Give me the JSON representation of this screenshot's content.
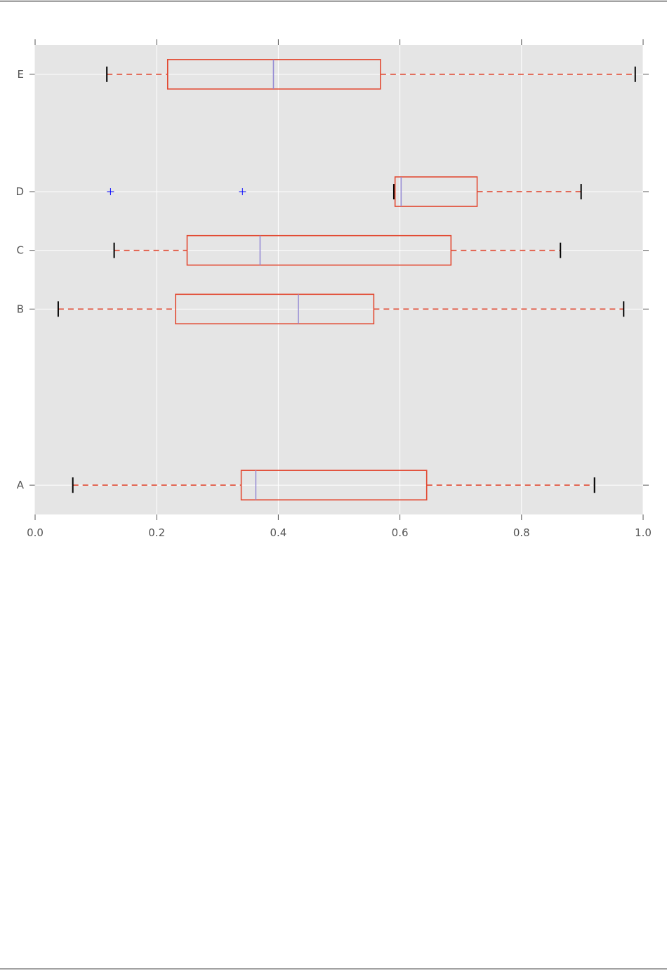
{
  "chart_data": {
    "type": "boxplot",
    "orientation": "horizontal",
    "title": "",
    "xlabel": "",
    "ylabel": "",
    "xlim": [
      0.0,
      1.0
    ],
    "x_ticks": [
      "0.0",
      "0.2",
      "0.4",
      "0.6",
      "0.8",
      "1.0"
    ],
    "grid": true,
    "colors": {
      "background": "#e5e5e5",
      "box": "#e24a33",
      "median": "#988ed5",
      "flier": "#0000ff",
      "cap": "#000000",
      "grid": "#ffffff"
    },
    "boxes": [
      {
        "label": "A",
        "position": 1.0,
        "whisker_low": 0.062,
        "q1": 0.339,
        "median": 0.363,
        "q3": 0.644,
        "whisker_high": 0.92,
        "fliers": []
      },
      {
        "label": "B",
        "position": 4.0,
        "whisker_low": 0.038,
        "q1": 0.231,
        "median": 0.433,
        "q3": 0.557,
        "whisker_high": 0.968,
        "fliers": []
      },
      {
        "label": "C",
        "position": 5.0,
        "whisker_low": 0.13,
        "q1": 0.25,
        "median": 0.37,
        "q3": 0.684,
        "whisker_high": 0.864,
        "fliers": []
      },
      {
        "label": "D",
        "position": 6.0,
        "whisker_low": 0.59,
        "q1": 0.592,
        "median": 0.602,
        "q3": 0.727,
        "whisker_high": 0.898,
        "fliers": [
          0.124,
          0.341
        ]
      },
      {
        "label": "E",
        "position": 8.0,
        "whisker_low": 0.118,
        "q1": 0.218,
        "median": 0.392,
        "q3": 0.568,
        "whisker_high": 0.987,
        "fliers": []
      }
    ]
  }
}
